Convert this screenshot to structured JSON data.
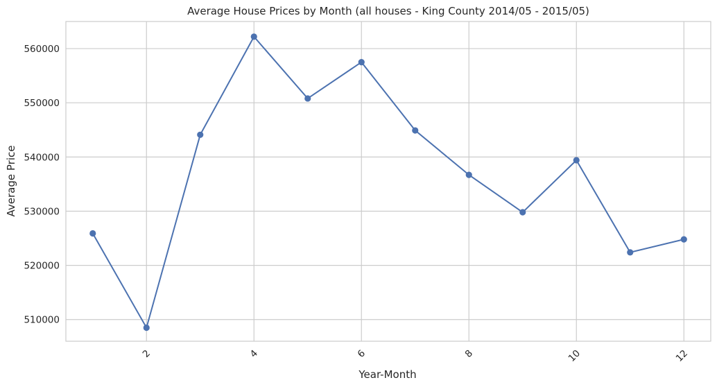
{
  "chart_data": {
    "type": "line",
    "title": "Average House Prices by Month (all houses - King County 2014/05 - 2015/05)",
    "xlabel": "Year-Month",
    "ylabel": "Average Price",
    "x": [
      1,
      2,
      3,
      4,
      5,
      6,
      7,
      8,
      9,
      10,
      11,
      12
    ],
    "series": [
      {
        "values": [
          525900,
          508500,
          544100,
          562200,
          550800,
          557500,
          544900,
          536700,
          529800,
          539400,
          522400,
          524800
        ],
        "color": "#4c72b0",
        "marker": "circle"
      }
    ],
    "xlim": [
      0.5,
      12.5
    ],
    "ylim": [
      506000,
      565000
    ],
    "xticks": [
      2,
      4,
      6,
      8,
      10,
      12
    ],
    "yticks": [
      510000,
      520000,
      530000,
      540000,
      550000,
      560000
    ],
    "xtick_rotation": 45,
    "grid": true
  }
}
